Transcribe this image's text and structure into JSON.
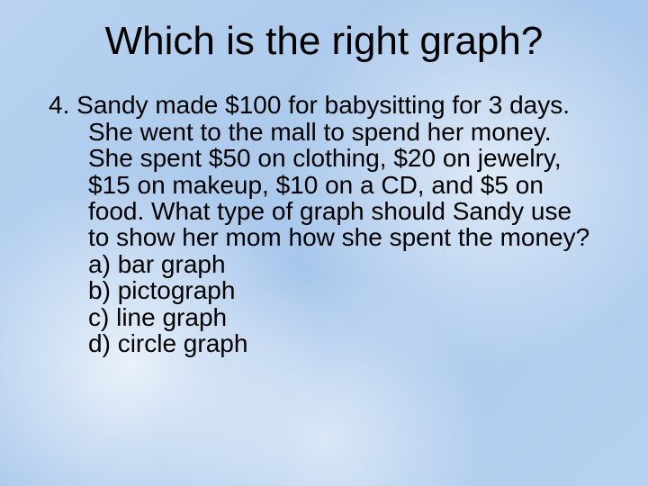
{
  "title": "Which is the right graph?",
  "title_fontsize": 44,
  "body_fontsize": 28,
  "text_color": "#000000",
  "background_colors": [
    "#b9d3f0",
    "#a8c7eb",
    "#b7d2f0"
  ],
  "question": {
    "number": "4.",
    "text": "Sandy made $100 for babysitting for 3 days. She went to the mall to spend her money. She spent $50 on clothing, $20 on jewelry, $15 on makeup, $10 on a CD, and $5 on food. What type of graph should Sandy use to show her mom how she spent the money?"
  },
  "options": [
    {
      "letter": "a)",
      "label": "bar graph"
    },
    {
      "letter": "b)",
      "label": "pictograph"
    },
    {
      "letter": "c)",
      "label": "line graph"
    },
    {
      "letter": "d)",
      "label": "circle graph"
    }
  ]
}
